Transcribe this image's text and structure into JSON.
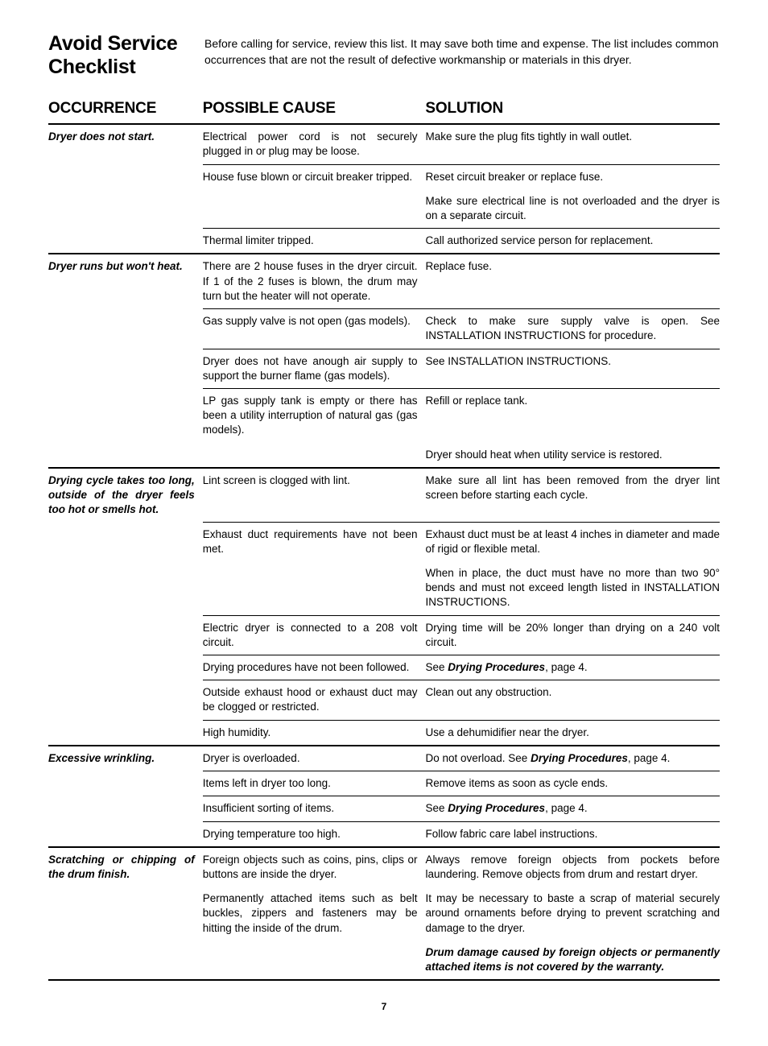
{
  "page": {
    "title": "Avoid Service Checklist",
    "intro": "Before calling for service, review this list. It may save both time and expense. The list includes common occurrences that are not the result of defective workmanship or materials in this dryer.",
    "number": "7",
    "columns": {
      "occurrence": "OCCURRENCE",
      "cause": "POSSIBLE CAUSE",
      "solution": "SOLUTION"
    }
  },
  "ref": {
    "drying_procedures": "Drying Procedures"
  },
  "sections": [
    {
      "occurrence": "Dryer does not start.",
      "rows": [
        {
          "cause": "Electrical power cord is not securely plugged in or plug may be loose.",
          "solutions": [
            "Make sure the plug fits tightly in wall outlet."
          ],
          "sep": "light"
        },
        {
          "cause": "House fuse blown or circuit breaker tripped.",
          "solutions": [
            "Reset circuit breaker or replace fuse.",
            "Make sure electrical line is not overloaded and the dryer is on a separate circuit."
          ],
          "sep": "light"
        },
        {
          "cause": "Thermal limiter tripped.",
          "solutions": [
            "Call authorized service person for replacement."
          ],
          "sep": "heavy"
        }
      ]
    },
    {
      "occurrence": "Dryer runs but won't heat.",
      "rows": [
        {
          "cause": "There are 2 house fuses in the dryer circuit. If 1 of the 2 fuses is blown, the drum may turn but the heater will not operate.",
          "solutions": [
            "Replace fuse."
          ],
          "sep": "light"
        },
        {
          "cause": "Gas supply valve is not open (gas models).",
          "solutions": [
            "Check to make sure supply valve is open. See INSTALLATION INSTRUCTIONS for procedure."
          ],
          "sep": "light"
        },
        {
          "cause": "Dryer does not have anough air supply to support the burner flame (gas models).",
          "solutions": [
            "See INSTALLATION INSTRUCTIONS."
          ],
          "sep": "light"
        },
        {
          "cause": "LP gas supply tank is empty or there has been a utility interruption of natural gas (gas models).",
          "solutions": [
            "Refill or replace tank.",
            "Dryer should heat when utility service is restored."
          ],
          "sep": "heavy"
        }
      ]
    },
    {
      "occurrence": "Drying cycle takes too long, outside of the dryer feels too hot or smells hot.",
      "rows": [
        {
          "cause": "Lint screen is clogged with lint.",
          "solutions": [
            "Make sure all lint has been removed from the dryer lint screen before starting each cycle."
          ],
          "sep": "light"
        },
        {
          "cause": "Exhaust duct requirements have not been met.",
          "solutions": [
            "Exhaust duct must be at least 4 inches in diameter and made of rigid or flexible metal.",
            "When in place, the duct must have no more than two 90° bends and must not exceed length listed in INSTALLATION INSTRUCTIONS."
          ],
          "sep": "light"
        },
        {
          "cause": "Electric dryer is connected to a 208 volt circuit.",
          "solutions": [
            "Drying time will be 20% longer than drying on a 240 volt circuit."
          ],
          "sep": "light"
        },
        {
          "cause": "Drying procedures have not been followed.",
          "solutions": [
            {
              "pre": "See ",
              "ref": "drying_procedures",
              "post": ", page 4."
            }
          ],
          "sep": "light"
        },
        {
          "cause": "Outside exhaust hood or exhaust duct may be clogged or restricted.",
          "solutions": [
            "Clean out any obstruction."
          ],
          "sep": "light"
        },
        {
          "cause": "High humidity.",
          "solutions": [
            "Use a dehumidifier near the dryer."
          ],
          "sep": "heavy"
        }
      ]
    },
    {
      "occurrence": "Excessive wrinkling.",
      "rows": [
        {
          "cause": "Dryer is overloaded.",
          "solutions": [
            {
              "pre": "Do not overload. See ",
              "ref": "drying_procedures",
              "post": ", page 4."
            }
          ],
          "sep": "light"
        },
        {
          "cause": "Items left in dryer too long.",
          "solutions": [
            "Remove items as soon as cycle ends."
          ],
          "sep": "light"
        },
        {
          "cause": "Insufficient sorting of items.",
          "solutions": [
            {
              "pre": "See ",
              "ref": "drying_procedures",
              "post": ", page 4."
            }
          ],
          "sep": "light"
        },
        {
          "cause": "Drying temperature too high.",
          "solutions": [
            "Follow fabric care label instructions."
          ],
          "sep": "heavy"
        }
      ]
    },
    {
      "occurrence": "Scratching or chipping of the drum finish.",
      "rows": [
        {
          "cause": "Foreign objects such as coins, pins, clips or buttons are inside the dryer.",
          "solutions": [
            "Always remove foreign objects from pockets before laundering. Remove objects from drum and restart dryer."
          ],
          "sep": "none"
        },
        {
          "cause": "Permanently attached items such as belt buckles, zippers and fasteners may be hitting the inside of the drum.",
          "solutions": [
            "It may be necessary to baste a scrap of material securely around ornaments before drying to prevent scratching and damage to the dryer.",
            {
              "warranty": "Drum damage caused by foreign objects or permanently attached items is not covered by the warranty."
            }
          ],
          "sep": "heavy"
        }
      ]
    }
  ]
}
